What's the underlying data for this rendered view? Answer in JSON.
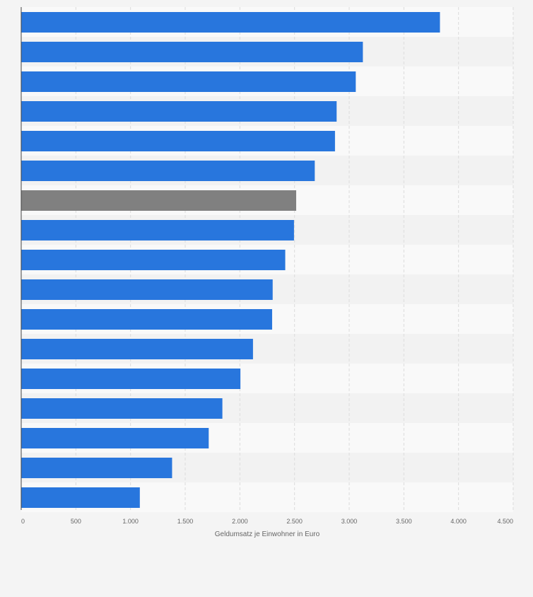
{
  "chart_data": {
    "type": "bar",
    "orientation": "horizontal",
    "title": "",
    "xlabel": "Geldumsatz je Einwohner in Euro",
    "ylabel": "",
    "xlim": [
      0,
      4500
    ],
    "xticks": [
      0,
      500,
      1000,
      1500,
      2000,
      2500,
      3000,
      3500,
      4000,
      4500
    ],
    "xtick_labels": [
      "0",
      "500",
      "1.000",
      "1.500",
      "2.000",
      "2.500",
      "3.000",
      "3.500",
      "4.000",
      "4.500"
    ],
    "grid": true,
    "legend": "none",
    "values": [
      3830,
      3125,
      3060,
      2885,
      2870,
      2685,
      2515,
      2495,
      2415,
      2300,
      2295,
      2120,
      2005,
      1840,
      1715,
      1380,
      1085
    ],
    "highlight_index": 6,
    "colors": {
      "bar": "#2876dd",
      "highlight": "#808080",
      "grid": "#dcdcdc",
      "band_light": "#f9f9f9",
      "band_dark": "#f2f2f2",
      "axis": "#444444",
      "tick_text": "#666666"
    }
  }
}
